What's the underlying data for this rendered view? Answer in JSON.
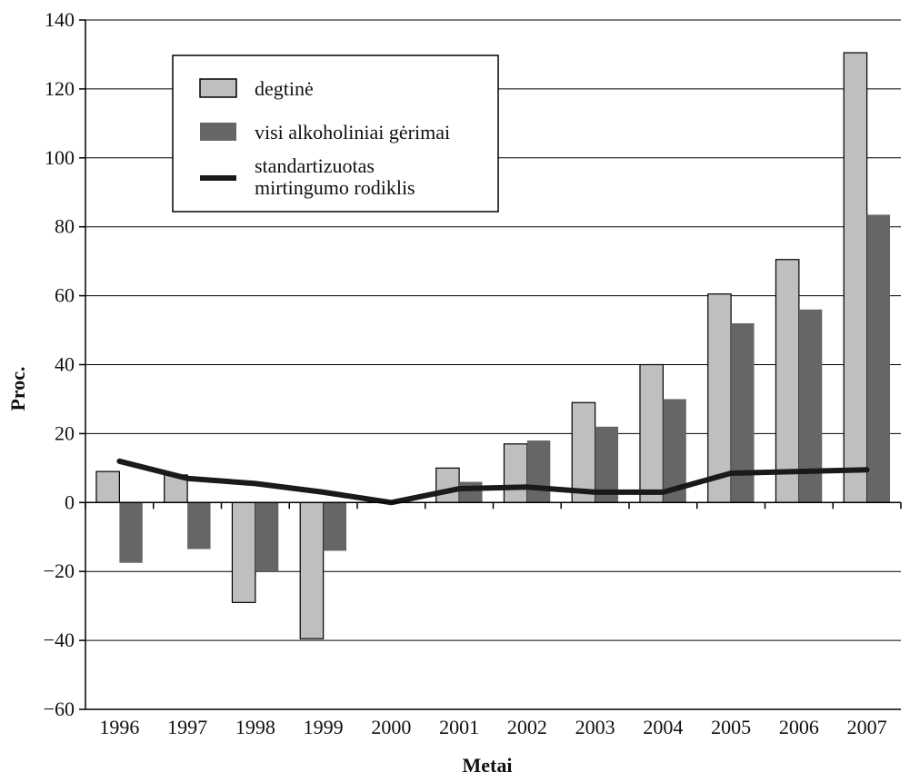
{
  "chart_data": {
    "type": "bar",
    "categories": [
      "1996",
      "1997",
      "1998",
      "1999",
      "2000",
      "2001",
      "2002",
      "2003",
      "2004",
      "2005",
      "2006",
      "2007"
    ],
    "series": [
      {
        "name": "degtinė",
        "kind": "bar",
        "color": "#bfbfbf",
        "values": [
          9,
          8,
          -29,
          -39.5,
          0,
          10,
          17,
          29,
          40,
          60.5,
          70.5,
          130.5
        ]
      },
      {
        "name": "visi alkoholiniai gėrimai",
        "kind": "bar",
        "color": "#666666",
        "values": [
          -17.5,
          -13.5,
          -20,
          -14,
          0,
          6,
          18,
          22,
          30,
          52,
          56,
          83.5
        ]
      },
      {
        "name_lines": [
          "standartizuotas",
          "mirtingumo rodiklis"
        ],
        "kind": "line",
        "color": "#1a1a1a",
        "values": [
          12,
          7,
          5.5,
          3,
          0,
          4,
          4.5,
          3,
          3,
          8.5,
          9,
          9.5
        ]
      }
    ],
    "title": "",
    "xlabel": "Metai",
    "ylabel": "Proc.",
    "ylim": [
      -60,
      140
    ],
    "yticks": [
      "140",
      "120",
      "100",
      "80",
      "60",
      "40",
      "20",
      "0",
      "−20",
      "−40",
      "−60"
    ],
    "grid": true,
    "legend_position": "top-left"
  }
}
